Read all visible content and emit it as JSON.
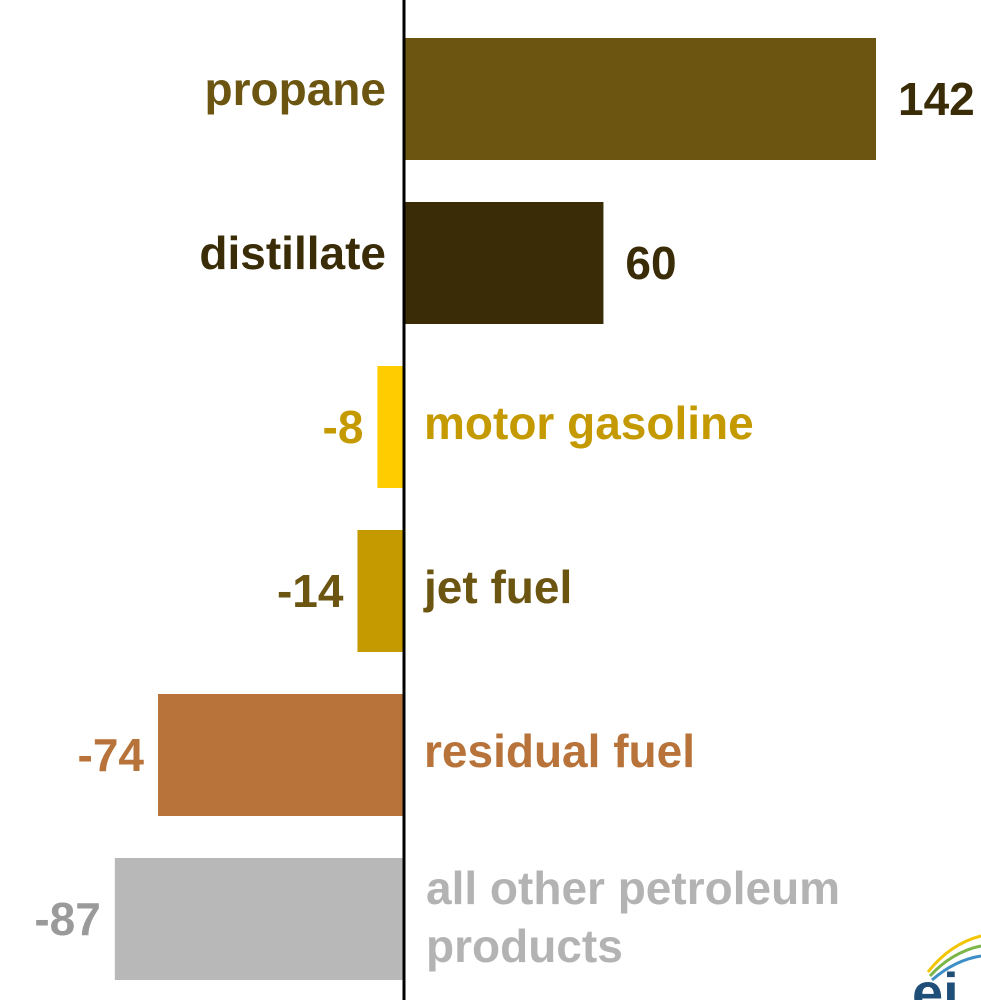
{
  "chart_data": {
    "type": "bar",
    "orientation": "horizontal",
    "title": "",
    "xlabel": "",
    "ylabel": "",
    "grid": false,
    "legend": "none",
    "categories": [
      "propane",
      "distillate",
      "motor gasoline",
      "jet fuel",
      "residual fuel",
      "all other petroleum products"
    ],
    "values": [
      142,
      60,
      -8,
      -14,
      -74,
      -87
    ],
    "value_labels": [
      "142",
      "60",
      "-8",
      "-14",
      "-74",
      "-87"
    ],
    "xlim": [
      -88,
      142
    ],
    "colors": [
      "#6b5511",
      "#3a2c07",
      "#ffcc00",
      "#c49a00",
      "#b8733a",
      "#b8b8b8"
    ],
    "label_colors": [
      "#6b5511",
      "#3a2c07",
      "#c49a00",
      "#6b5511",
      "#b8733a",
      "#b3b3b3"
    ],
    "value_label_colors": [
      "#3a2c07",
      "#3a2c07",
      "#c49a00",
      "#6b5511",
      "#b8733a",
      "#9a9a9a"
    ],
    "logo_icon": "eia-logo-icon"
  }
}
